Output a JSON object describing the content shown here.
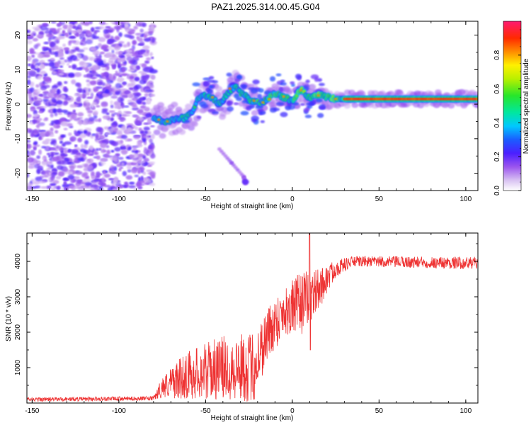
{
  "title": "PAZ1.2025.314.00.45.G04",
  "chart_data": [
    {
      "type": "heatmap",
      "name": "spectrogram",
      "xlabel": "Height of straight line (km)",
      "ylabel": "Frequency (Hz)",
      "xlim": [
        -153,
        107
      ],
      "ylim": [
        -25,
        24
      ],
      "xticks": [
        -150,
        -100,
        -50,
        0,
        50,
        100
      ],
      "yticks": [
        -20,
        -10,
        0,
        10,
        20
      ],
      "xtick_labels": [
        "-150",
        "-100",
        "-50",
        "0",
        "50",
        "100"
      ],
      "ytick_labels": [
        "-20",
        "-10",
        "0",
        "10",
        "20"
      ],
      "colorbar": {
        "label": "Normalized spectral amplitude",
        "range": [
          0,
          1
        ],
        "ticks": [
          0.0,
          0.2,
          0.4,
          0.6,
          0.8
        ],
        "tick_labels": [
          "0.0",
          "0.2",
          "0.4",
          "0.6",
          "0.8"
        ]
      },
      "features": {
        "noise_region_x": [
          -153,
          -80
        ],
        "main_signal_freq_hz": 1.5,
        "trace_points": [
          {
            "x": -78,
            "y": -4.5
          },
          {
            "x": -74,
            "y": -5
          },
          {
            "x": -68,
            "y": -4.5
          },
          {
            "x": -62,
            "y": -4
          },
          {
            "x": -57,
            "y": -2
          },
          {
            "x": -55,
            "y": 1
          },
          {
            "x": -52,
            "y": 3
          },
          {
            "x": -46,
            "y": 2
          },
          {
            "x": -42,
            "y": 0
          },
          {
            "x": -36,
            "y": 4
          },
          {
            "x": -32,
            "y": 5
          },
          {
            "x": -29,
            "y": 3
          },
          {
            "x": -23,
            "y": 1
          },
          {
            "x": -17,
            "y": 0.5
          },
          {
            "x": -10,
            "y": 3
          },
          {
            "x": -5,
            "y": 2
          },
          {
            "x": 0,
            "y": 1
          },
          {
            "x": 5,
            "y": 4
          },
          {
            "x": 10,
            "y": 2
          },
          {
            "x": 15,
            "y": 2.5
          },
          {
            "x": 25,
            "y": 1.5
          },
          {
            "x": 40,
            "y": 1.5
          },
          {
            "x": 60,
            "y": 1.5
          },
          {
            "x": 80,
            "y": 1.5
          },
          {
            "x": 100,
            "y": 1.5
          }
        ],
        "faint_branch": [
          {
            "x": -42,
            "y": -13
          },
          {
            "x": -35,
            "y": -17
          },
          {
            "x": -28,
            "y": -21
          },
          {
            "x": -27,
            "y": -23
          }
        ],
        "upper_blob": {
          "x": -83,
          "y": 10
        }
      }
    },
    {
      "type": "line",
      "name": "snr",
      "xlabel": "Height of straight line (km)",
      "ylabel": "SNR (10 * v/v)",
      "xlim": [
        -153,
        107
      ],
      "ylim": [
        0,
        4800
      ],
      "xticks": [
        -150,
        -100,
        -50,
        0,
        50,
        100
      ],
      "yticks": [
        1000,
        2000,
        3000,
        4000
      ],
      "xtick_labels": [
        "-150",
        "-100",
        "-50",
        "0",
        "50",
        "100"
      ],
      "ytick_labels": [
        "1000",
        "2000",
        "3000",
        "4000"
      ],
      "color": "#ee3333",
      "envelope": [
        {
          "x": -153,
          "mean": 100,
          "spread": 60
        },
        {
          "x": -80,
          "mean": 130,
          "spread": 60
        },
        {
          "x": -75,
          "mean": 450,
          "spread": 300
        },
        {
          "x": -60,
          "mean": 800,
          "spread": 700
        },
        {
          "x": -40,
          "mean": 1000,
          "spread": 900
        },
        {
          "x": -22,
          "mean": 1000,
          "spread": 1000
        },
        {
          "x": -15,
          "mean": 1900,
          "spread": 800
        },
        {
          "x": -5,
          "mean": 2600,
          "spread": 700
        },
        {
          "x": 5,
          "mean": 2800,
          "spread": 900
        },
        {
          "x": 15,
          "mean": 3200,
          "spread": 600
        },
        {
          "x": 25,
          "mean": 3800,
          "spread": 250
        },
        {
          "x": 35,
          "mean": 4000,
          "spread": 150
        },
        {
          "x": 107,
          "mean": 3950,
          "spread": 180
        }
      ],
      "peak": {
        "x": 10,
        "y": 4800
      },
      "dip": {
        "x": 10,
        "y": 1500
      }
    }
  ]
}
